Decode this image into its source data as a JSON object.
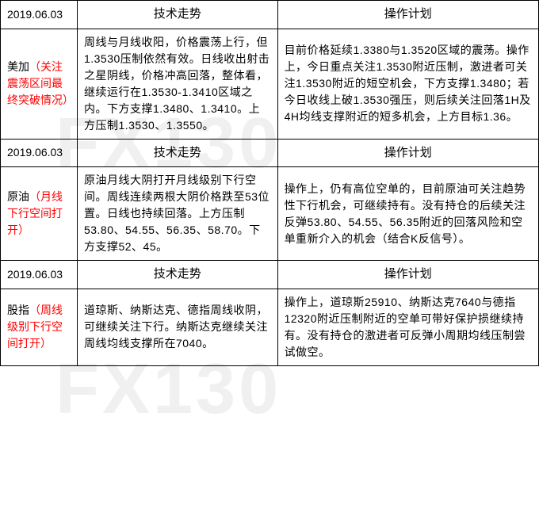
{
  "watermark_text": "FX130",
  "headers": {
    "tech": "技术走势",
    "plan": "操作计划"
  },
  "sections": [
    {
      "date": "2019.06.03",
      "label_black": "美加",
      "label_red": "（关注震荡区间最终突破情况）",
      "tech": "周线与月线收阳，价格震荡上行，但1.3530压制依然有效。日线收出射击之星阴线，价格冲高回落，整体看，继续运行在1.3530-1.3410区域之内。下方支撑1.3480、1.3410。上方压制1.3530、1.3550。",
      "plan": "目前价格延续1.3380与1.3520区域的震荡。操作上，今日重点关注1.3530附近压制，激进者可关注1.3530附近的短空机会，下方支撑1.3480；若今日收线上破1.3530强压，则后续关注回落1H及4H均线支撑附近的短多机会，上方目标1.36。"
    },
    {
      "date": "2019.06.03",
      "label_black": "原油",
      "label_red": "（月线下行空间打开）",
      "tech": "原油月线大阴打开月线级别下行空间。周线连续两根大阴价格跌至53位置。日线也持续回落。上方压制53.80、54.55、56.35、58.70。下方支撑52、45。",
      "plan": "操作上，仍有高位空单的，目前原油可关注趋势性下行机会，可继续持有。没有持仓的后续关注反弹53.80、54.55、56.35附近的回落风险和空单重新介入的机会（结合K反信号）。"
    },
    {
      "date": "2019.06.03",
      "label_black": "股指",
      "label_red": "（周线级别下行空间打开）",
      "tech": "道琼斯、纳斯达克、德指周线收阴，可继续关注下行。纳斯达克继续关注周线均线支撑所在7040。",
      "plan": "操作上，道琼斯25910、纳斯达克7640与德指12320附近压制附近的空单可带好保护损继续持有。没有持仓的激进者可反弹小周期均线压制尝试做空。"
    }
  ]
}
